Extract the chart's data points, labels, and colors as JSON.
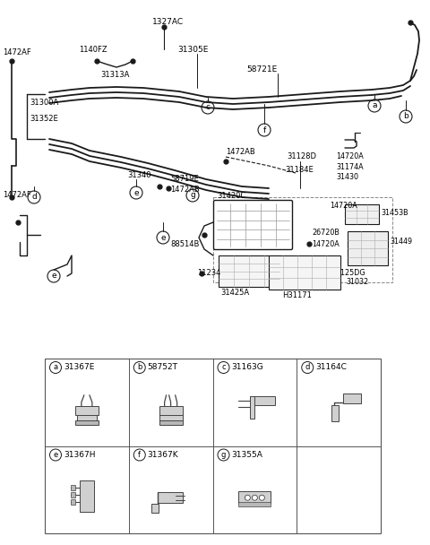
{
  "bg_color": "#ffffff",
  "line_color": "#1a1a1a",
  "text_color": "#000000",
  "fig_width": 4.8,
  "fig_height": 6.08,
  "dpi": 100,
  "legend_items": [
    {
      "label": "a",
      "part": "31367E"
    },
    {
      "label": "b",
      "part": "58752T"
    },
    {
      "label": "c",
      "part": "31163G"
    },
    {
      "label": "d",
      "part": "31164C"
    },
    {
      "label": "e",
      "part": "31367H"
    },
    {
      "label": "f",
      "part": "31367K"
    },
    {
      "label": "g",
      "part": "31355A"
    }
  ]
}
